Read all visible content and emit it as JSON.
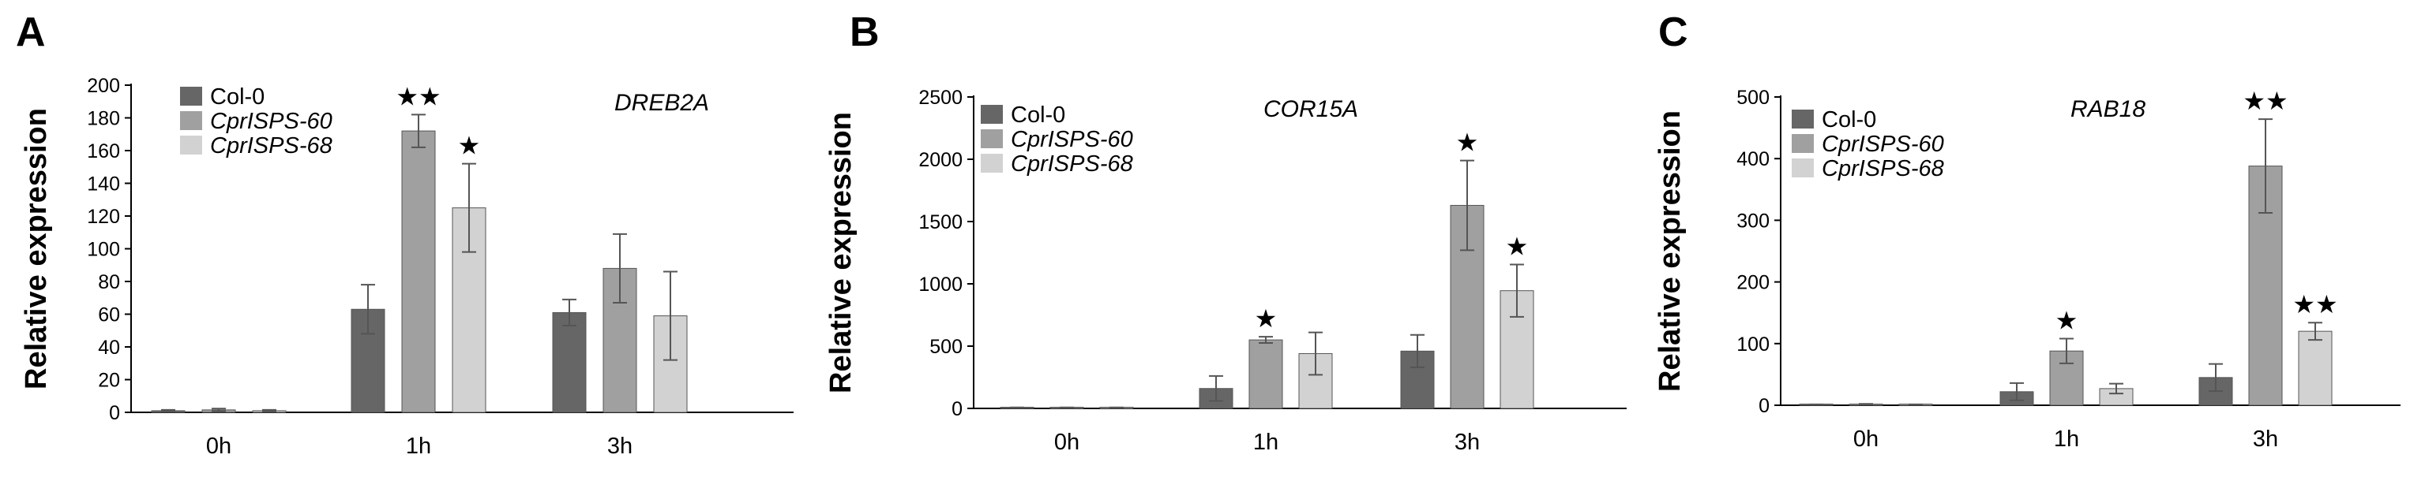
{
  "colors": {
    "Col-0": "#666666",
    "CprISPS-60": "#a0a0a0",
    "CprISPS-68": "#d2d2d2",
    "axis": "#000000",
    "errorbar": "#555555"
  },
  "legend_position": "top-left",
  "chart_data": [
    {
      "type": "bar",
      "panel_letter": "A",
      "annotation": "DREB2A",
      "ylabel": "Relative expression",
      "categories": [
        "0h",
        "1h",
        "3h"
      ],
      "ylim": [
        0,
        200
      ],
      "yticks": [
        "0",
        "20",
        "40",
        "60",
        "80",
        "100",
        "120",
        "140",
        "160",
        "180",
        "200"
      ],
      "series": [
        {
          "name": "Col-0",
          "values": [
            1,
            63,
            61
          ],
          "errors": [
            0.5,
            15,
            8
          ],
          "stars": [
            "",
            "",
            ""
          ]
        },
        {
          "name": "CprISPS-60",
          "values": [
            1.5,
            172,
            88
          ],
          "errors": [
            0.8,
            10,
            21
          ],
          "stars": [
            "",
            "★★",
            ""
          ]
        },
        {
          "name": "CprISPS-68",
          "values": [
            1,
            125,
            59
          ],
          "errors": [
            0.5,
            27,
            27
          ],
          "stars": [
            "",
            "★",
            ""
          ]
        }
      ]
    },
    {
      "type": "bar",
      "panel_letter": "B",
      "annotation": "COR15A",
      "ylabel": "Relative expression",
      "categories": [
        "0h",
        "1h",
        "3h"
      ],
      "ylim": [
        0,
        2500
      ],
      "yticks": [
        "0",
        "500",
        "1000",
        "1500",
        "2000",
        "2500"
      ],
      "series": [
        {
          "name": "Col-0",
          "values": [
            5,
            160,
            460
          ],
          "errors": [
            3,
            100,
            130
          ],
          "stars": [
            "",
            "",
            ""
          ]
        },
        {
          "name": "CprISPS-60",
          "values": [
            5,
            550,
            1630
          ],
          "errors": [
            3,
            25,
            360
          ],
          "stars": [
            "",
            "★",
            "★"
          ]
        },
        {
          "name": "CprISPS-68",
          "values": [
            5,
            440,
            945
          ],
          "errors": [
            3,
            170,
            210
          ],
          "stars": [
            "",
            "",
            "★"
          ]
        }
      ]
    },
    {
      "type": "bar",
      "panel_letter": "C",
      "annotation": "RAB18",
      "ylabel": "Relative expression",
      "categories": [
        "0h",
        "1h",
        "3h"
      ],
      "ylim": [
        0,
        500
      ],
      "yticks": [
        "0",
        "100",
        "200",
        "300",
        "400",
        "500"
      ],
      "series": [
        {
          "name": "Col-0",
          "values": [
            1,
            22,
            45
          ],
          "errors": [
            0.5,
            14,
            22
          ],
          "stars": [
            "",
            "",
            ""
          ]
        },
        {
          "name": "CprISPS-60",
          "values": [
            1.5,
            88,
            388
          ],
          "errors": [
            0.8,
            20,
            76
          ],
          "stars": [
            "",
            "★",
            "★★"
          ]
        },
        {
          "name": "CprISPS-68",
          "values": [
            1,
            27,
            120
          ],
          "errors": [
            0.5,
            8,
            14
          ],
          "stars": [
            "",
            "",
            "★★"
          ]
        }
      ]
    }
  ]
}
